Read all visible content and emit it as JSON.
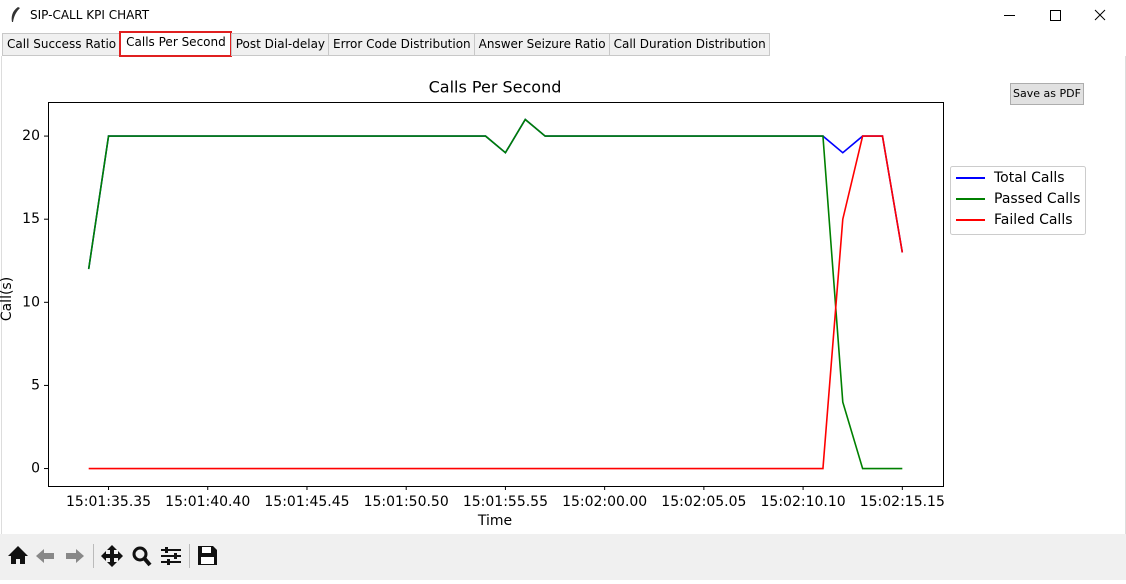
{
  "window": {
    "title": "SIP-CALL KPI CHART"
  },
  "tabs": [
    "Call Success Ratio",
    "Calls Per Second",
    "Post Dial-delay",
    "Error Code Distribution",
    "Answer Seizure Ratio",
    "Call Duration Distribution"
  ],
  "save_button": "Save as PDF",
  "chart_data": {
    "type": "line",
    "title": "Calls Per Second",
    "x_label": "Time",
    "y_label": "Call(s)",
    "categories": [
      null,
      "15:01:35.35",
      null,
      null,
      null,
      null,
      "15:01:40.40",
      null,
      null,
      null,
      null,
      "15:01:45.45",
      null,
      null,
      null,
      null,
      "15:01:50.50",
      null,
      null,
      null,
      null,
      "15:01:55.55",
      null,
      null,
      null,
      null,
      "15:02:00.00",
      null,
      null,
      null,
      null,
      "15:02:05.05",
      null,
      null,
      null,
      null,
      "15:02:10.10",
      null,
      null,
      null,
      null,
      "15:02:15.15"
    ],
    "series": [
      {
        "name": "Total Calls",
        "color": "#0000ff",
        "values": [
          12,
          20,
          20,
          20,
          20,
          20,
          20,
          20,
          20,
          20,
          20,
          20,
          20,
          20,
          20,
          20,
          20,
          20,
          20,
          20,
          20,
          19,
          21,
          20,
          20,
          20,
          20,
          20,
          20,
          20,
          20,
          20,
          20,
          20,
          20,
          20,
          20,
          20,
          19,
          20,
          20,
          13
        ]
      },
      {
        "name": "Passed Calls",
        "color": "#008000",
        "values": [
          12,
          20,
          20,
          20,
          20,
          20,
          20,
          20,
          20,
          20,
          20,
          20,
          20,
          20,
          20,
          20,
          20,
          20,
          20,
          20,
          20,
          19,
          21,
          20,
          20,
          20,
          20,
          20,
          20,
          20,
          20,
          20,
          20,
          20,
          20,
          20,
          20,
          20,
          4,
          0,
          0,
          0
        ]
      },
      {
        "name": "Failed Calls",
        "color": "#ff0000",
        "values": [
          0,
          0,
          0,
          0,
          0,
          0,
          0,
          0,
          0,
          0,
          0,
          0,
          0,
          0,
          0,
          0,
          0,
          0,
          0,
          0,
          0,
          0,
          0,
          0,
          0,
          0,
          0,
          0,
          0,
          0,
          0,
          0,
          0,
          0,
          0,
          0,
          0,
          0,
          15,
          20,
          20,
          13
        ]
      }
    ],
    "ylim": [
      -1.05,
      22.05
    ],
    "yticks": [
      0,
      5,
      10,
      15,
      20
    ],
    "legend": "right"
  }
}
